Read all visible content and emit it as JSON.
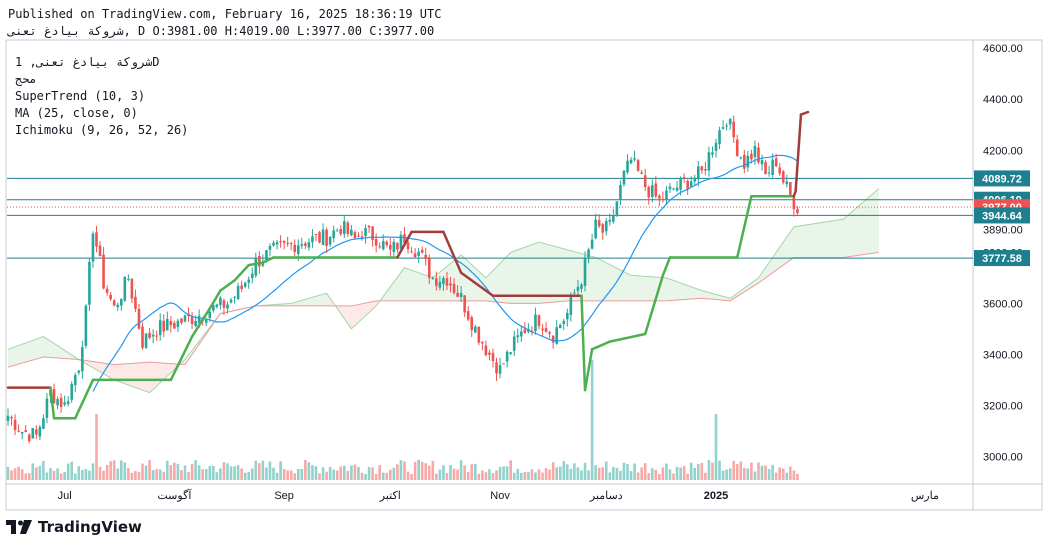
{
  "header": {
    "published": "Published on TradingView.com, February 16, 2025 18:36:19 UTC",
    "symbol_line": "شروكة بيادغ تعنى, D O:3981.00 H:4019.00 L:3977.00 C:3977.00"
  },
  "legend": {
    "line1": "شروكة بيادغ تعنى, 1D",
    "line2": "محج",
    "line3": "SuperTrend (10, 3)",
    "line4": "MA (25, close, 0)",
    "line5": "Ichimoku (9, 26, 52, 26)"
  },
  "brand": {
    "name": "TradingView"
  },
  "colors": {
    "up": "#26a69a",
    "down": "#ef5350",
    "supertrend_up": "#4caf50",
    "supertrend_down": "#a33c3c",
    "ma": "#2196f3",
    "hline": "#1e7f8e",
    "last_price": "#ef5350"
  },
  "chart_data": {
    "type": "candlestick",
    "ylim": [
      2900,
      4640
    ],
    "y_ticks": [
      4600,
      4400,
      4200,
      4000,
      3800,
      3600,
      3400,
      3200,
      3000
    ],
    "x_ticks": [
      {
        "label": "Jul",
        "day": 16
      },
      {
        "label": "آگوست",
        "day": 47
      },
      {
        "label": "Sep",
        "day": 78
      },
      {
        "label": "اکتبر",
        "day": 108
      },
      {
        "label": "Nov",
        "day": 139
      },
      {
        "label": "دسامبر",
        "day": 169
      },
      {
        "label": "2025",
        "day": 200
      },
      {
        "label": "مارس",
        "day": 259
      }
    ],
    "x_range_days": [
      0,
      264
    ],
    "price_labels": [
      {
        "value": 4089.72,
        "text": "4089.72",
        "style": "line"
      },
      {
        "value": 4006.19,
        "text": "4006.19",
        "style": "line"
      },
      {
        "value": 3977.0,
        "text": "3977.00",
        "style": "last"
      },
      {
        "value": 3944.64,
        "text": "3944.64",
        "style": "line"
      },
      {
        "value": 3777.58,
        "text": "3777.58",
        "style": "line"
      }
    ],
    "hidden_label": "3890.00",
    "anchors": {
      "day": [
        0,
        4,
        8,
        12,
        16,
        20,
        22,
        24,
        27,
        30,
        34,
        38,
        42,
        47,
        51,
        55,
        58,
        62,
        66,
        70,
        74,
        78,
        82,
        86,
        90,
        94,
        98,
        100,
        104,
        108,
        112,
        116,
        120,
        124,
        128,
        132,
        136,
        139,
        142,
        146,
        150,
        154,
        158,
        160,
        162,
        164,
        166,
        168,
        170,
        172,
        174,
        176,
        180,
        184,
        188,
        192,
        196,
        200,
        203,
        206,
        208,
        211,
        214,
        217,
        219,
        221,
        223
      ],
      "close": [
        3160,
        3100,
        3080,
        3250,
        3200,
        3360,
        3560,
        3900,
        3680,
        3580,
        3700,
        3450,
        3500,
        3520,
        3540,
        3560,
        3580,
        3600,
        3660,
        3760,
        3800,
        3820,
        3840,
        3850,
        3860,
        3900,
        3850,
        3880,
        3860,
        3800,
        3860,
        3800,
        3700,
        3700,
        3620,
        3500,
        3400,
        3340,
        3420,
        3500,
        3540,
        3480,
        3560,
        3640,
        3700,
        3800,
        3900,
        3880,
        3900,
        4000,
        4100,
        4160,
        4060,
        4000,
        4050,
        4080,
        4110,
        4250,
        4330,
        4210,
        4150,
        4200,
        4100,
        4160,
        4080,
        4020,
        3977
      ]
    },
    "bar_days": [
      0,
      223
    ],
    "supertrend": [
      {
        "day": 0,
        "y": 3270,
        "trend": "down"
      },
      {
        "day": 12,
        "y": 3270,
        "trend": "down"
      },
      {
        "day": 13,
        "y": 3150,
        "trend": "up"
      },
      {
        "day": 19,
        "y": 3150,
        "trend": "up"
      },
      {
        "day": 24,
        "y": 3300,
        "trend": "up"
      },
      {
        "day": 46,
        "y": 3300,
        "trend": "up"
      },
      {
        "day": 52,
        "y": 3470,
        "trend": "up"
      },
      {
        "day": 57,
        "y": 3580,
        "trend": "up"
      },
      {
        "day": 60,
        "y": 3650,
        "trend": "up"
      },
      {
        "day": 64,
        "y": 3690,
        "trend": "up"
      },
      {
        "day": 68,
        "y": 3750,
        "trend": "up"
      },
      {
        "day": 72,
        "y": 3760,
        "trend": "up"
      },
      {
        "day": 75,
        "y": 3780,
        "trend": "up"
      },
      {
        "day": 110,
        "y": 3780,
        "trend": "up"
      },
      {
        "day": 114,
        "y": 3880,
        "trend": "down"
      },
      {
        "day": 123,
        "y": 3880,
        "trend": "down"
      },
      {
        "day": 128,
        "y": 3720,
        "trend": "down"
      },
      {
        "day": 137,
        "y": 3630,
        "trend": "down"
      },
      {
        "day": 162,
        "y": 3630,
        "trend": "down"
      },
      {
        "day": 163,
        "y": 3260,
        "trend": "up"
      },
      {
        "day": 165,
        "y": 3420,
        "trend": "up"
      },
      {
        "day": 170,
        "y": 3450,
        "trend": "up"
      },
      {
        "day": 180,
        "y": 3480,
        "trend": "up"
      },
      {
        "day": 185,
        "y": 3710,
        "trend": "up"
      },
      {
        "day": 187,
        "y": 3780,
        "trend": "up"
      },
      {
        "day": 206,
        "y": 3780,
        "trend": "up"
      },
      {
        "day": 209,
        "y": 3960,
        "trend": "up"
      },
      {
        "day": 210,
        "y": 4020,
        "trend": "up"
      },
      {
        "day": 213,
        "y": 4020,
        "trend": "up"
      },
      {
        "day": 222,
        "y": 4020,
        "trend": "up"
      },
      {
        "day": 222.5,
        "y": 4040,
        "trend": "down"
      },
      {
        "day": 224,
        "y": 4340,
        "trend": "down"
      },
      {
        "day": 226,
        "y": 4350,
        "trend": "down"
      }
    ],
    "ichimoku_span_a": [
      {
        "day": 0,
        "y": 3420
      },
      {
        "day": 10,
        "y": 3470
      },
      {
        "day": 20,
        "y": 3380
      },
      {
        "day": 30,
        "y": 3300
      },
      {
        "day": 40,
        "y": 3250
      },
      {
        "day": 50,
        "y": 3380
      },
      {
        "day": 60,
        "y": 3560
      },
      {
        "day": 70,
        "y": 3590
      },
      {
        "day": 80,
        "y": 3600
      },
      {
        "day": 90,
        "y": 3640
      },
      {
        "day": 97,
        "y": 3500
      },
      {
        "day": 104,
        "y": 3590
      },
      {
        "day": 112,
        "y": 3740
      },
      {
        "day": 120,
        "y": 3700
      },
      {
        "day": 128,
        "y": 3790
      },
      {
        "day": 135,
        "y": 3700
      },
      {
        "day": 142,
        "y": 3800
      },
      {
        "day": 150,
        "y": 3840
      },
      {
        "day": 158,
        "y": 3810
      },
      {
        "day": 166,
        "y": 3780
      },
      {
        "day": 176,
        "y": 3710
      },
      {
        "day": 186,
        "y": 3700
      },
      {
        "day": 196,
        "y": 3650
      },
      {
        "day": 204,
        "y": 3620
      },
      {
        "day": 212,
        "y": 3700
      },
      {
        "day": 222,
        "y": 3900
      },
      {
        "day": 236,
        "y": 3930
      },
      {
        "day": 246,
        "y": 4050
      }
    ],
    "ichimoku_span_b": [
      {
        "day": 0,
        "y": 3350
      },
      {
        "day": 10,
        "y": 3390
      },
      {
        "day": 20,
        "y": 3380
      },
      {
        "day": 30,
        "y": 3360
      },
      {
        "day": 40,
        "y": 3370
      },
      {
        "day": 50,
        "y": 3360
      },
      {
        "day": 60,
        "y": 3560
      },
      {
        "day": 70,
        "y": 3590
      },
      {
        "day": 80,
        "y": 3590
      },
      {
        "day": 90,
        "y": 3590
      },
      {
        "day": 97,
        "y": 3590
      },
      {
        "day": 104,
        "y": 3610
      },
      {
        "day": 112,
        "y": 3610
      },
      {
        "day": 120,
        "y": 3610
      },
      {
        "day": 128,
        "y": 3610
      },
      {
        "day": 135,
        "y": 3610
      },
      {
        "day": 142,
        "y": 3600
      },
      {
        "day": 150,
        "y": 3600
      },
      {
        "day": 158,
        "y": 3610
      },
      {
        "day": 166,
        "y": 3610
      },
      {
        "day": 176,
        "y": 3610
      },
      {
        "day": 186,
        "y": 3610
      },
      {
        "day": 196,
        "y": 3620
      },
      {
        "day": 204,
        "y": 3610
      },
      {
        "day": 212,
        "y": 3680
      },
      {
        "day": 222,
        "y": 3780
      },
      {
        "day": 236,
        "y": 3780
      },
      {
        "day": 246,
        "y": 3800
      }
    ],
    "volume_spikes": [
      {
        "day": 25,
        "value": 0.55
      },
      {
        "day": 165,
        "value": 1.0
      },
      {
        "day": 200,
        "value": 0.55
      },
      {
        "day": 224,
        "value": 0.33
      }
    ]
  }
}
